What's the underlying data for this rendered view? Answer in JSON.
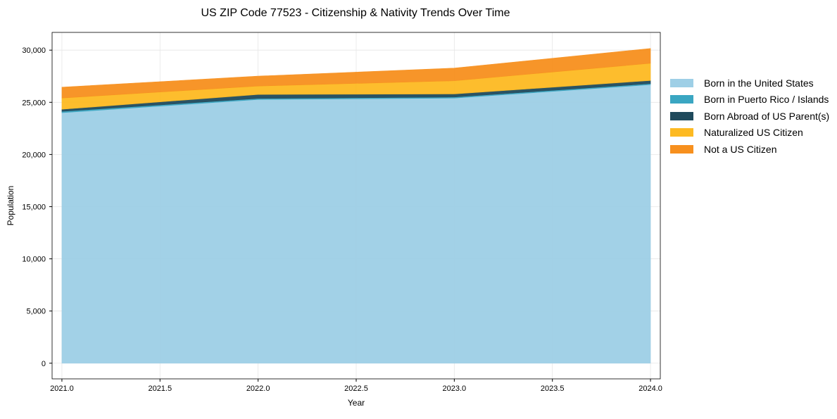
{
  "chart_data": {
    "type": "area",
    "stacked": true,
    "title": "US ZIP Code 77523 - Citizenship & Nativity Trends Over Time",
    "xlabel": "Year",
    "ylabel": "Population",
    "x": [
      2021,
      2022,
      2023,
      2024
    ],
    "xlim": [
      2020.95,
      2024.05
    ],
    "ylim": [
      -1500,
      31700
    ],
    "xticks": [
      "2021.0",
      "2021.5",
      "2022.0",
      "2022.5",
      "2023.0",
      "2023.5",
      "2024.0"
    ],
    "xtick_values": [
      2021,
      2021.5,
      2022,
      2022.5,
      2023,
      2023.5,
      2024
    ],
    "yticks": [
      "0",
      "5,000",
      "10,000",
      "15,000",
      "20,000",
      "25,000",
      "30,000"
    ],
    "ytick_values": [
      0,
      5000,
      10000,
      15000,
      20000,
      25000,
      30000
    ],
    "grid": true,
    "legend_position": "right",
    "series": [
      {
        "name": "Born in the United States",
        "color": "#9ecfe6",
        "values": [
          24000,
          25270,
          25400,
          26690
        ]
      },
      {
        "name": "Born in Puerto Rico / Islands",
        "color": "#3aa6c2",
        "values": [
          130,
          100,
          100,
          100
        ]
      },
      {
        "name": "Born Abroad of US Parent(s)",
        "color": "#1f4a5c",
        "values": [
          200,
          380,
          300,
          300
        ]
      },
      {
        "name": "Naturalized US Citizen",
        "color": "#fdba22",
        "values": [
          1080,
          810,
          1260,
          1650
        ]
      },
      {
        "name": "Not a US Citizen",
        "color": "#f7901e",
        "values": [
          1040,
          950,
          1220,
          1420
        ]
      }
    ]
  }
}
